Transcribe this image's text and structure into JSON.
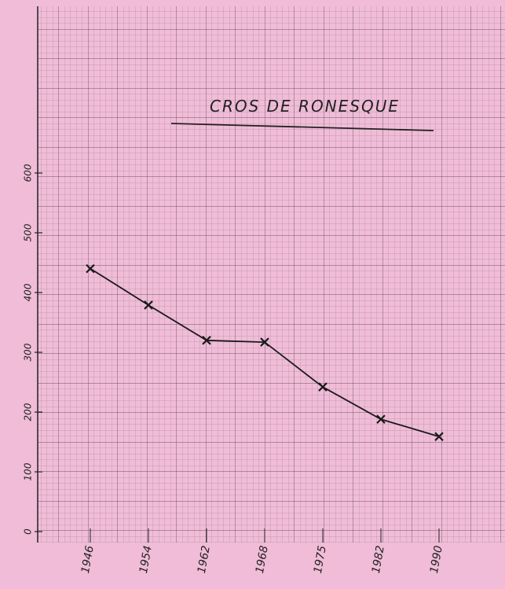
{
  "chart_data": {
    "type": "line",
    "title": "CROS DE RONESQUE",
    "categories": [
      "1946",
      "1954",
      "1962",
      "1968",
      "1975",
      "1982",
      "1990"
    ],
    "values": [
      440,
      379,
      320,
      317,
      242,
      188,
      159
    ],
    "color": "#1a1a1a",
    "ylim": [
      0,
      880
    ],
    "yticks": [
      0,
      100,
      200,
      300,
      400,
      500,
      600
    ],
    "grid": true
  }
}
